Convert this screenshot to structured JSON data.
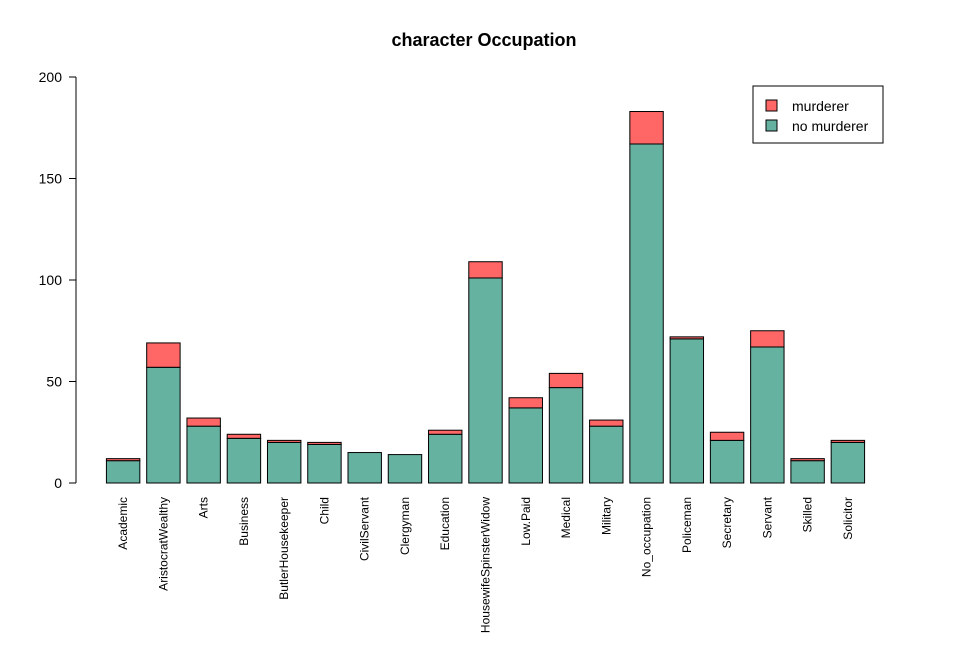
{
  "chart_data": {
    "type": "bar",
    "stacked": true,
    "title": "character Occupation",
    "xlabel": "",
    "ylabel": "",
    "ylim": [
      0,
      200
    ],
    "yticks": [
      0,
      50,
      100,
      150,
      200
    ],
    "grid": false,
    "legend_position": "top-right",
    "categories": [
      "Academic",
      "AristocratWealthy",
      "Arts",
      "Business",
      "ButlerHousekeeper",
      "Child",
      "CivilServant",
      "Clergyman",
      "Education",
      "HousewifeSpinsterWidow",
      "Low.Paid",
      "Medical",
      "Military",
      "No_occupation",
      "Policeman",
      "Secretary",
      "Servant",
      "Skilled",
      "Solicitor"
    ],
    "series": [
      {
        "name": "no murderer",
        "color": "#66b2a1",
        "values": [
          11,
          57,
          28,
          22,
          20,
          19,
          15,
          14,
          24,
          101,
          37,
          47,
          28,
          167,
          71,
          21,
          67,
          11,
          20
        ]
      },
      {
        "name": "murderer",
        "color": "#ff6666",
        "values": [
          1,
          12,
          4,
          2,
          1,
          1,
          0,
          0,
          2,
          8,
          5,
          7,
          3,
          16,
          1,
          4,
          8,
          1,
          1
        ]
      }
    ],
    "legend_order": [
      "murderer",
      "no murderer"
    ]
  }
}
